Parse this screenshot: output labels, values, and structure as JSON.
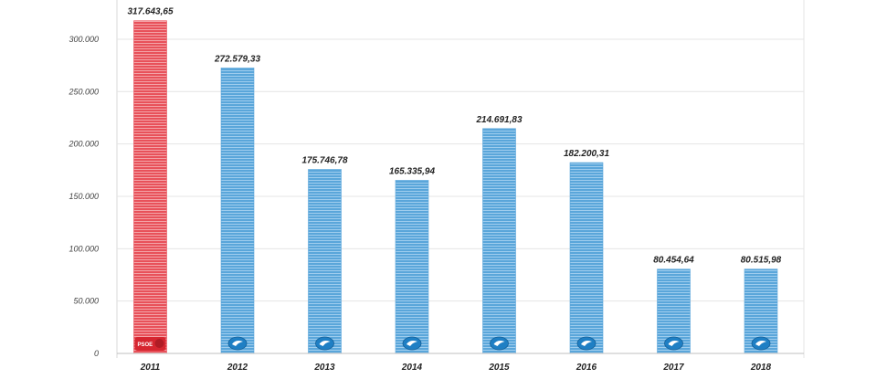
{
  "chart_data": {
    "type": "bar",
    "title": "",
    "xlabel": "",
    "ylabel": "",
    "categories": [
      "2011",
      "2012",
      "2013",
      "2014",
      "2015",
      "2016",
      "2017",
      "2018"
    ],
    "values": [
      317643.65,
      272579.33,
      175746.78,
      165335.94,
      214691.83,
      182200.31,
      80454.64,
      80515.98
    ],
    "data_labels": [
      "317.643,65",
      "272.579,33",
      "175.746,78",
      "165.335,94",
      "214.691,83",
      "182.200,31",
      "80.454,64",
      "80.515,98"
    ],
    "yticks": [
      0,
      50000,
      100000,
      150000,
      200000,
      250000,
      300000
    ],
    "ytick_labels": [
      "0",
      "50.000",
      "100.000",
      "150.000",
      "200.000",
      "250.000",
      "300.000"
    ],
    "ylim": [
      0,
      320000
    ],
    "grid": true,
    "legend": "none",
    "bar_colors": [
      "#e8515a",
      "#5aa6da",
      "#5aa6da",
      "#5aa6da",
      "#5aa6da",
      "#5aa6da",
      "#5aa6da",
      "#5aa6da"
    ],
    "party_logos": [
      "psoe-logo-icon",
      "pp-logo-icon",
      "pp-logo-icon",
      "pp-logo-icon",
      "pp-logo-icon",
      "pp-logo-icon",
      "pp-logo-icon",
      "pp-logo-icon"
    ],
    "logo_text": [
      "PSOE",
      "",
      "",
      "",
      "",
      "",
      "",
      ""
    ]
  }
}
